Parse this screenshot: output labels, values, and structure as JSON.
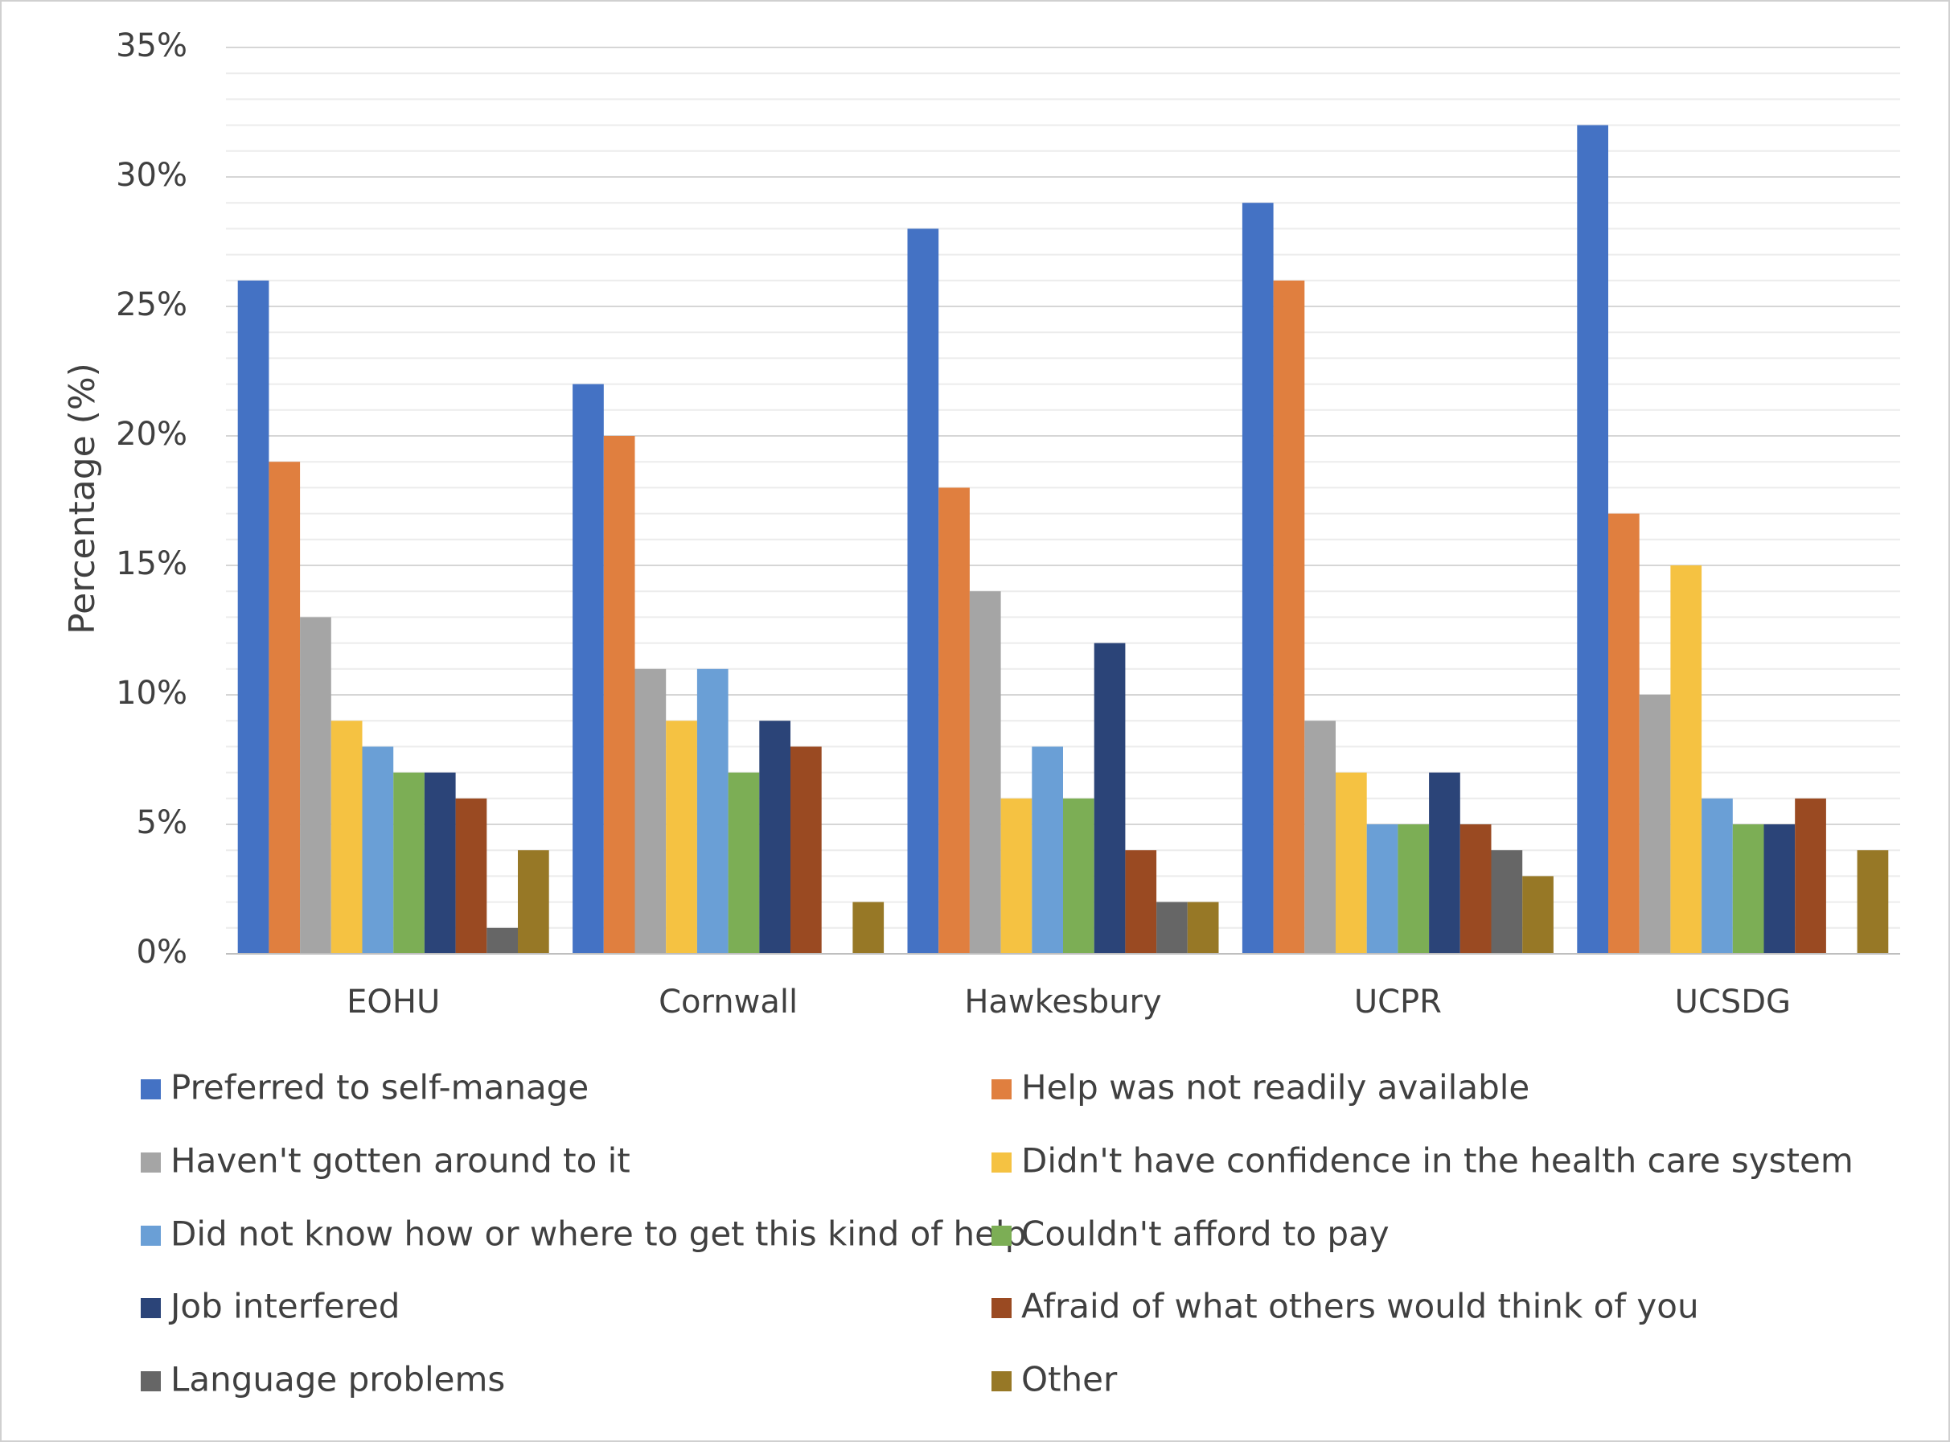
{
  "chart_data": {
    "type": "bar",
    "y_label": "Percentage (%)",
    "categories": [
      "EOHU",
      "Cornwall",
      "Hawkesbury",
      "UCPR",
      "UCSDG"
    ],
    "series": [
      {
        "name": "Preferred to self-manage",
        "color": "#4472c4",
        "values": [
          26,
          22,
          28,
          29,
          32
        ]
      },
      {
        "name": "Help was not readily available",
        "color": "#e07f3f",
        "values": [
          19,
          20,
          18,
          26,
          17
        ]
      },
      {
        "name": "Haven't gotten around to it",
        "color": "#a5a5a5",
        "values": [
          13,
          11,
          14,
          9,
          10
        ]
      },
      {
        "name": "Didn't have confidence in the health care system",
        "color": "#f5c242",
        "values": [
          9,
          9,
          6,
          7,
          15
        ]
      },
      {
        "name": "Did not know how or where to get this kind of help",
        "color": "#6a9fd6",
        "values": [
          8,
          11,
          8,
          5,
          6
        ]
      },
      {
        "name": "Couldn't afford to pay",
        "color": "#7cae55",
        "values": [
          7,
          7,
          6,
          5,
          5
        ]
      },
      {
        "name": "Job interfered",
        "color": "#2b4478",
        "values": [
          7,
          9,
          12,
          7,
          5
        ]
      },
      {
        "name": "Afraid of what others would think of you",
        "color": "#9a4a22",
        "values": [
          6,
          8,
          4,
          5,
          6
        ]
      },
      {
        "name": "Language problems",
        "color": "#666666",
        "values": [
          1,
          0,
          2,
          4,
          0
        ]
      },
      {
        "name": "Other",
        "color": "#977826",
        "values": [
          4,
          2,
          2,
          3,
          4
        ]
      }
    ],
    "ylim": [
      0,
      35
    ],
    "yticks": [
      {
        "value": 0,
        "label": "0%"
      },
      {
        "value": 5,
        "label": "5%"
      },
      {
        "value": 10,
        "label": "10%"
      },
      {
        "value": 15,
        "label": "15%"
      },
      {
        "value": 20,
        "label": "20%"
      },
      {
        "value": 25,
        "label": "25%"
      },
      {
        "value": 30,
        "label": "30%"
      },
      {
        "value": 35,
        "label": "35%"
      }
    ],
    "minor_yticks": [
      1,
      2,
      3,
      4,
      6,
      7,
      8,
      9,
      11,
      12,
      13,
      14,
      16,
      17,
      18,
      19,
      21,
      22,
      23,
      24,
      26,
      27,
      28,
      29,
      31,
      32,
      33,
      34
    ],
    "grid": true,
    "legend": "bottom"
  }
}
